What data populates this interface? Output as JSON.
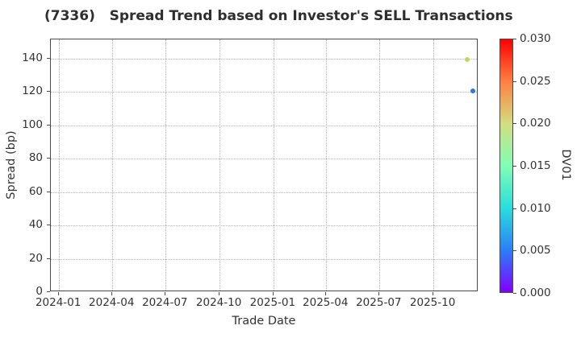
{
  "chart_data": {
    "type": "scatter",
    "title": "(7336)   Spread Trend based on Investor's SELL Transactions",
    "xlabel": "Trade Date",
    "ylabel": "Spread (bp)",
    "x_tick_labels": [
      "2024-01",
      "2024-04",
      "2024-07",
      "2024-10",
      "2025-01",
      "2025-04",
      "2025-07",
      "2025-10"
    ],
    "y_ticks": [
      0,
      20,
      40,
      60,
      80,
      100,
      120,
      140
    ],
    "ylim": [
      0,
      151.6
    ],
    "xlim_dates": [
      "2023-12-18",
      "2025-12-17"
    ],
    "grid": {
      "visible": true,
      "style": "dotted",
      "color": "#b4b4b4"
    },
    "legend": "none",
    "points": [
      {
        "date": "2025-11-28",
        "spread_bp": 139.5,
        "dv01": 0.018,
        "color": "#c3d45c"
      },
      {
        "date": "2025-12-08",
        "spread_bp": 120.5,
        "dv01": 0.004,
        "color": "#2b7ae0"
      }
    ],
    "colorbar": {
      "label": "DV01",
      "tick_labels": [
        "0.000",
        "0.005",
        "0.010",
        "0.015",
        "0.020",
        "0.025",
        "0.030"
      ],
      "tick_values": [
        0,
        0.005,
        0.01,
        0.015,
        0.02,
        0.025,
        0.03
      ],
      "range": [
        0,
        0.03
      ],
      "colormap": "rainbow",
      "gradient_stops_bottom_to_top": [
        "#8000ff",
        "#2a80f6",
        "#2adddd",
        "#80ffb4",
        "#d4dd80",
        "#ff8042",
        "#ff0000"
      ]
    },
    "colors": {
      "spine": "#4a4a4a",
      "text": "#333333",
      "title": "#2e2e2e",
      "background": "#ffffff"
    }
  }
}
